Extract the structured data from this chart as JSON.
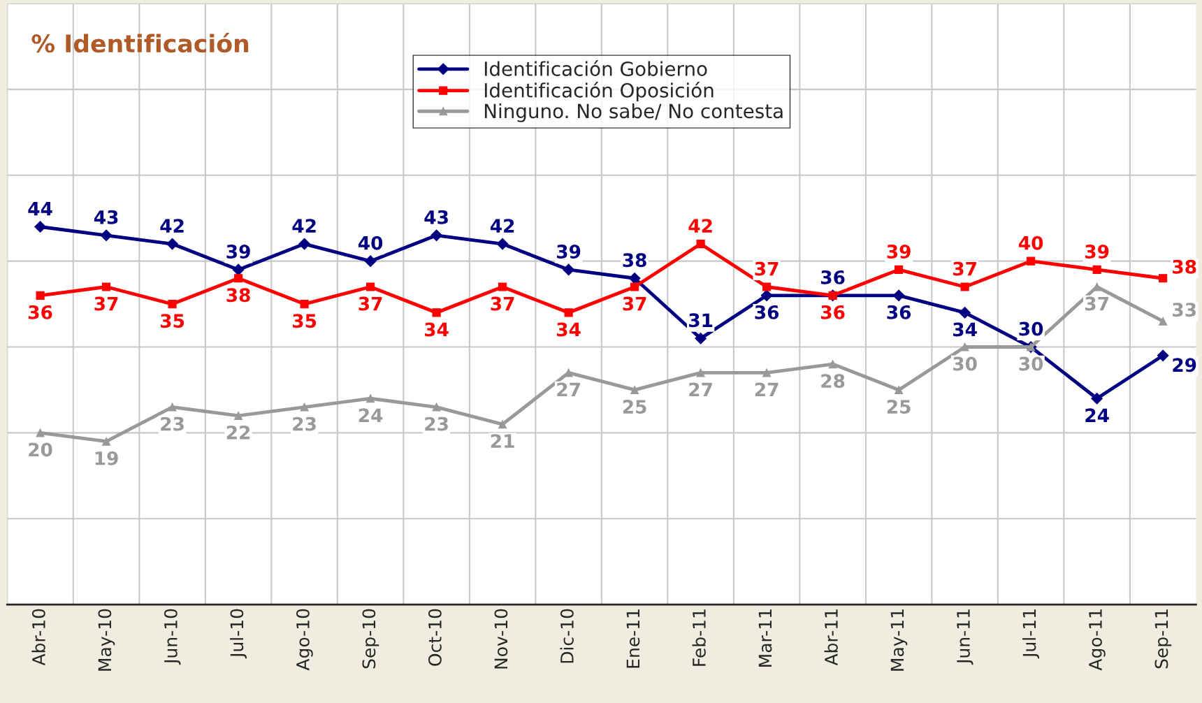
{
  "chart_data": {
    "type": "line",
    "title": "% Identificación",
    "categories": [
      "Abr-10",
      "May-10",
      "Jun-10",
      "Jul-10",
      "Ago-10",
      "Sep-10",
      "Oct-10",
      "Nov-10",
      "Dic-10",
      "Ene-11",
      "Feb-11",
      "Mar-11",
      "Abr-11",
      "May-11",
      "Jun-11",
      "Jul-11",
      "Ago-11",
      "Sep-11"
    ],
    "series": [
      {
        "name": "Identificación Gobierno",
        "color": "#000080",
        "marker": "diamond",
        "values": [
          44,
          43,
          42,
          39,
          42,
          40,
          43,
          42,
          39,
          38,
          31,
          36,
          36,
          36,
          34,
          30,
          24,
          29
        ]
      },
      {
        "name": "Identificación Oposición",
        "color": "#ff0000",
        "marker": "square",
        "values": [
          36,
          37,
          35,
          38,
          35,
          37,
          34,
          37,
          34,
          37,
          42,
          37,
          36,
          39,
          37,
          40,
          39,
          38
        ]
      },
      {
        "name": "Ninguno. No sabe/ No contesta",
        "color": "#999999",
        "marker": "triangle",
        "values": [
          20,
          19,
          23,
          22,
          23,
          24,
          23,
          21,
          27,
          25,
          27,
          27,
          28,
          25,
          30,
          30,
          37,
          33
        ]
      }
    ],
    "ylim": [
      0,
      70
    ],
    "yticks": [
      {
        "value": 0,
        "label": null
      },
      {
        "value": 10,
        "label": null
      },
      {
        "value": 20,
        "label": null
      },
      {
        "value": 30,
        "label": null
      },
      {
        "value": 40,
        "label": null
      },
      {
        "value": 50,
        "label": null
      },
      {
        "value": 60,
        "label": null
      },
      {
        "value": 70,
        "label": null
      }
    ],
    "tick_labels": "x",
    "grid": true,
    "legend": "top",
    "data_labels": true,
    "line_style": "solid"
  }
}
